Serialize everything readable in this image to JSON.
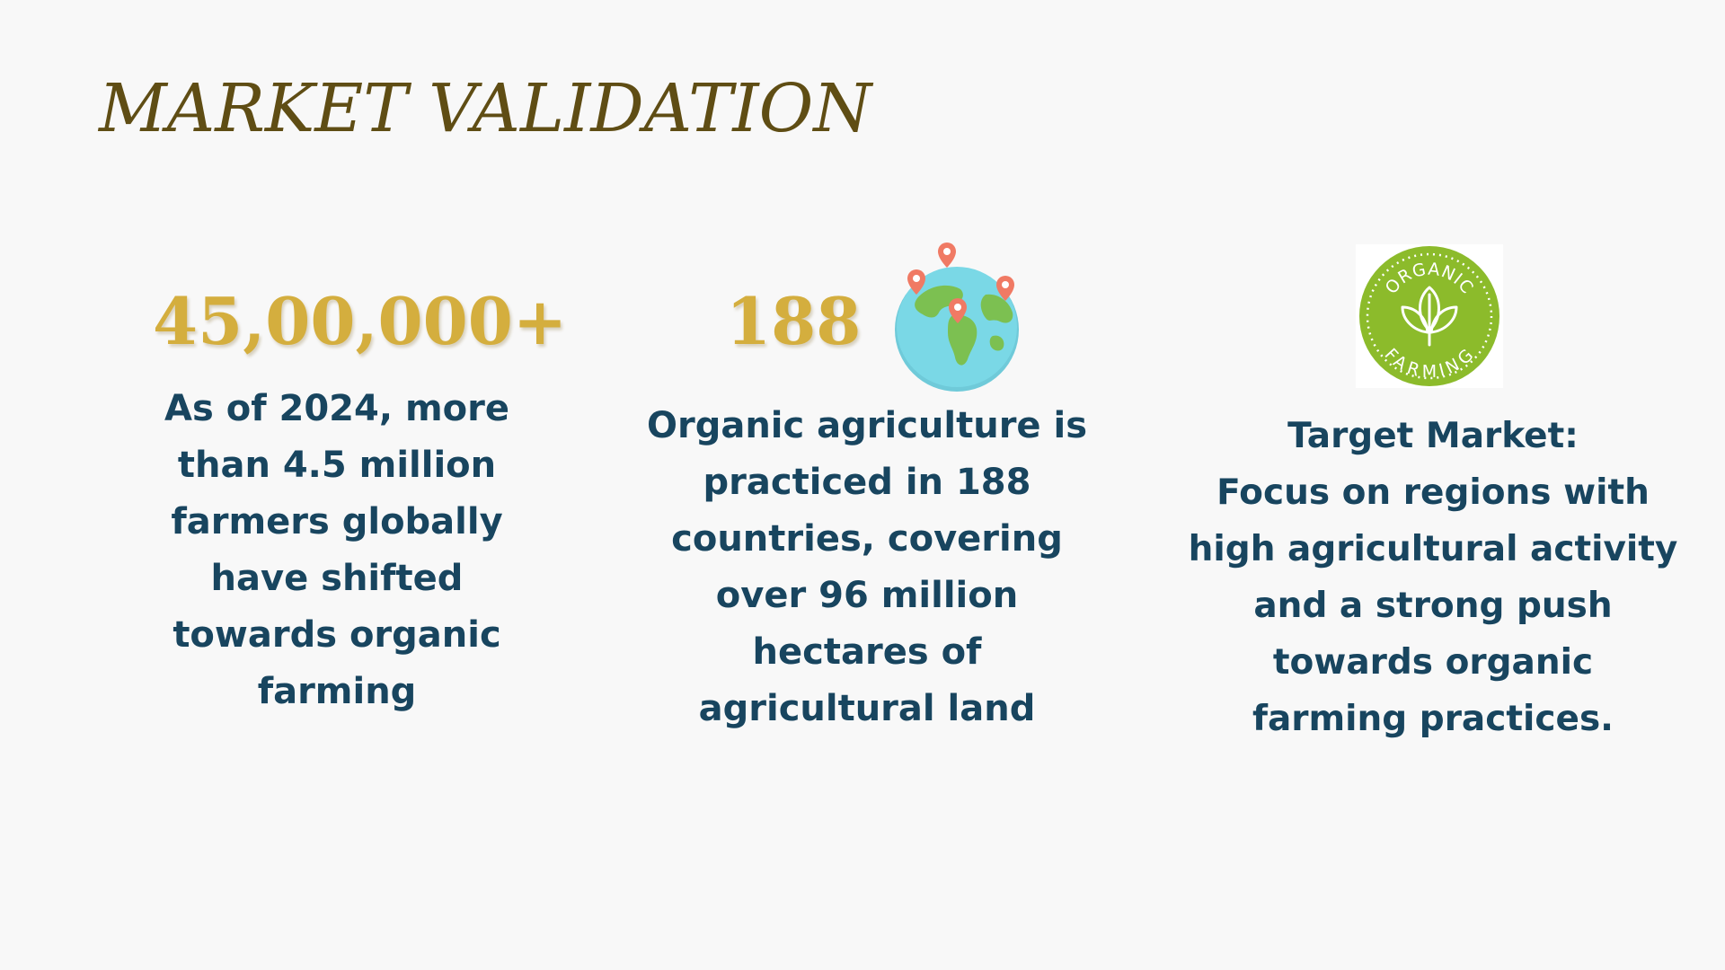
{
  "title": "MARKET VALIDATION",
  "colors": {
    "title": "#5f4d14",
    "stat": "#d4ae3e",
    "text": "#18455f",
    "badge_green": "#8cbb2b",
    "globe_ocean": "#7ad8e6",
    "globe_land": "#7cc051",
    "pin": "#f07a64"
  },
  "columns": [
    {
      "stat": "45,00,000+",
      "lines": [
        "As of 2024, more",
        "than 4.5 million",
        "farmers globally",
        "have shifted",
        "towards organic",
        "farming"
      ]
    },
    {
      "stat": "188",
      "icon": "globe-with-pins-icon",
      "lines": [
        "Organic agriculture is",
        "practiced in 188",
        "countries, covering",
        "over 96 million",
        "hectares of",
        "agricultural land"
      ]
    },
    {
      "icon": "organic-farming-badge-icon",
      "badge_top_text": "ORGANIC",
      "badge_bottom_text": "FARMING",
      "lines": [
        "Target Market:",
        "Focus on regions with",
        "high agricultural activity",
        "and a strong push",
        "towards organic",
        "farming practices."
      ]
    }
  ]
}
